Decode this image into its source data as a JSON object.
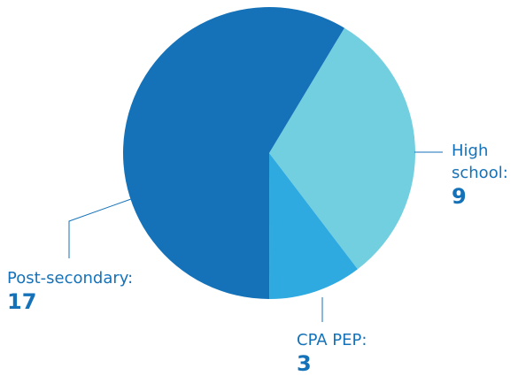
{
  "chart_data": {
    "type": "pie",
    "categories": [
      "High school:",
      "CPA PEP:",
      "Post-secondary:"
    ],
    "values": [
      9,
      3,
      17
    ],
    "colors": [
      "#72cfe0",
      "#2eaae1",
      "#1572b8"
    ]
  }
}
